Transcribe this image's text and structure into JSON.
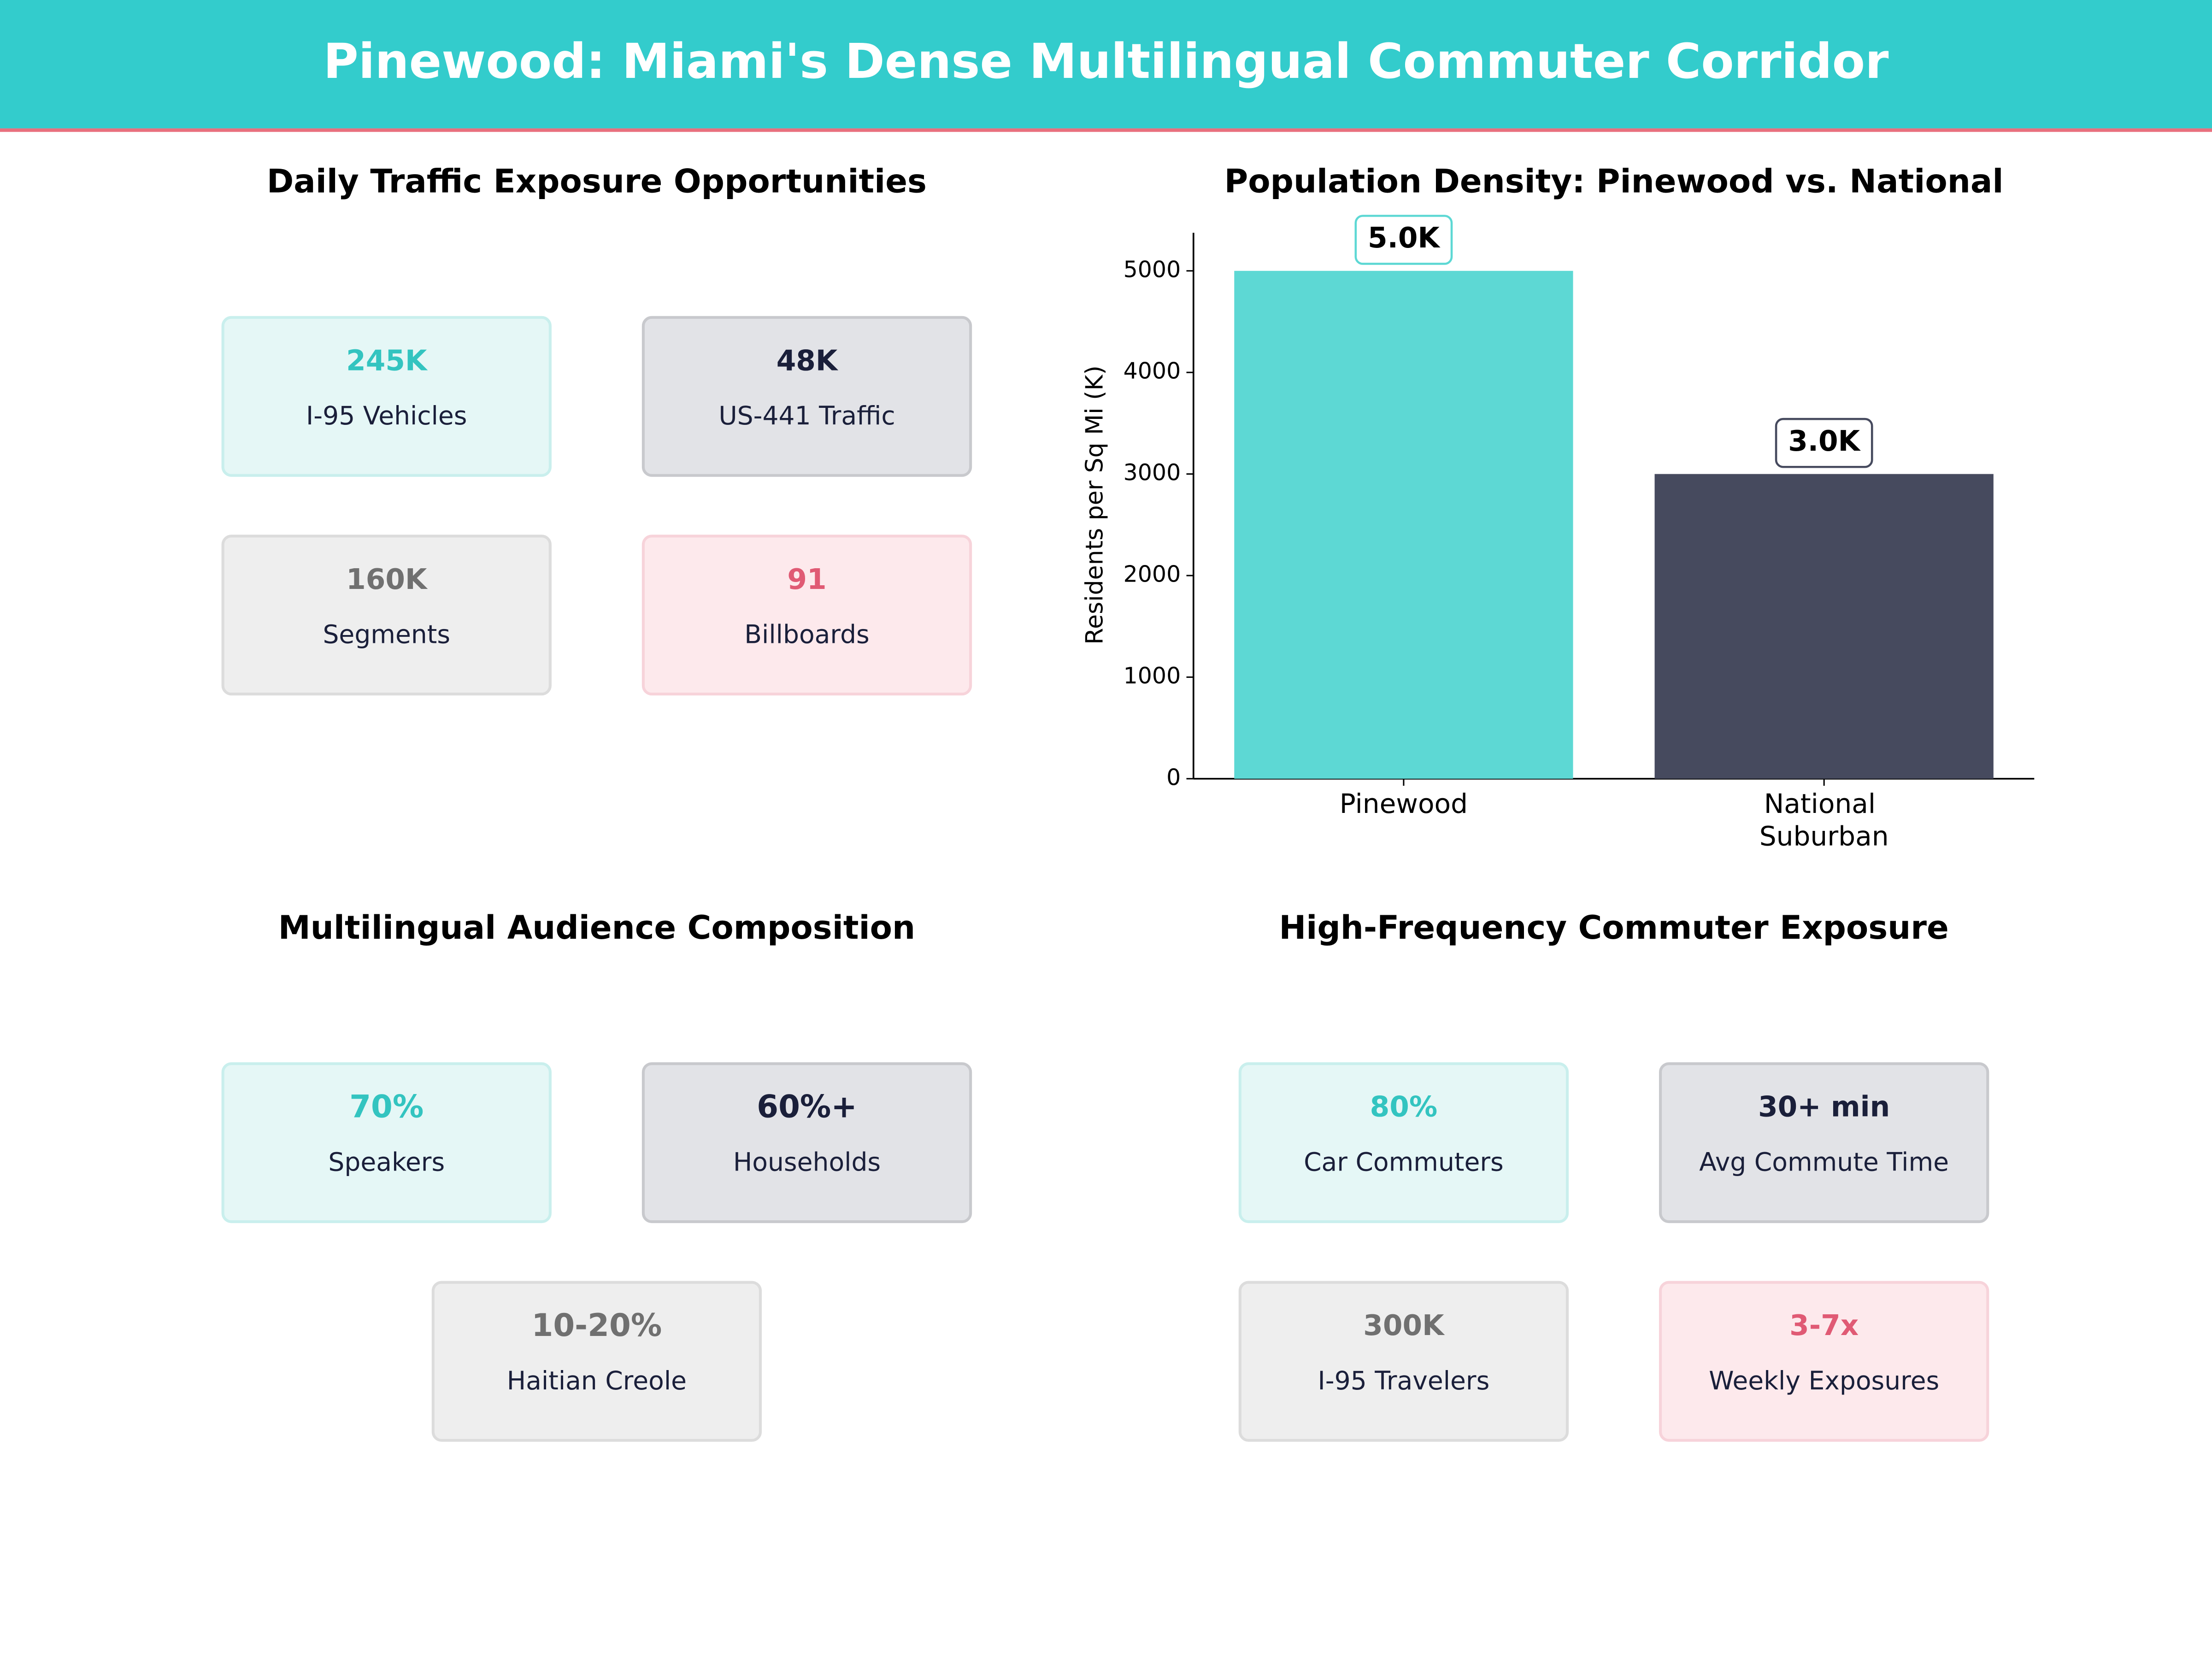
{
  "header": {
    "title": "Pinewood: Miami's Dense Multilingual Commuter Corridor"
  },
  "traffic": {
    "title": "Daily Traffic Exposure Opportunities",
    "cards": [
      {
        "value": "245K",
        "label": "I-95  Vehicles"
      },
      {
        "value": "48K",
        "label": "US-441  Traffic"
      },
      {
        "value": "160K",
        "label": "Segments"
      },
      {
        "value": "91",
        "label": "Billboards"
      }
    ]
  },
  "chart_data": {
    "type": "bar",
    "title": "Population Density: Pinewood vs. National",
    "y_label": "Residents per Sq Mi (K)",
    "categories": [
      "Pinewood",
      "National Suburban"
    ],
    "values": [
      5000,
      3000
    ],
    "value_labels": [
      "5.0K",
      "3.0K"
    ],
    "colors": [
      "#5dd8d4",
      "#464a5e"
    ],
    "ylim": [
      0,
      5375
    ],
    "yticks": [
      0,
      1000,
      2000,
      3000,
      4000,
      5000
    ],
    "grid": false
  },
  "audience": {
    "title": "Multilingual Audience Composition",
    "cards": [
      {
        "value": "70%",
        "label": "Speakers"
      },
      {
        "value": "60%+",
        "label": "Households"
      },
      {
        "value": "10-20%",
        "label": "Haitian Creole"
      }
    ]
  },
  "commute": {
    "title": "High-Frequency Commuter Exposure",
    "cards": [
      {
        "value": "80%",
        "label": "Car Commuters"
      },
      {
        "value": "30+ min",
        "label": "Avg Commute Time"
      },
      {
        "value": "300K",
        "label": "I-95 Travelers"
      },
      {
        "value": "3-7x",
        "label": "Weekly Exposures"
      }
    ]
  }
}
